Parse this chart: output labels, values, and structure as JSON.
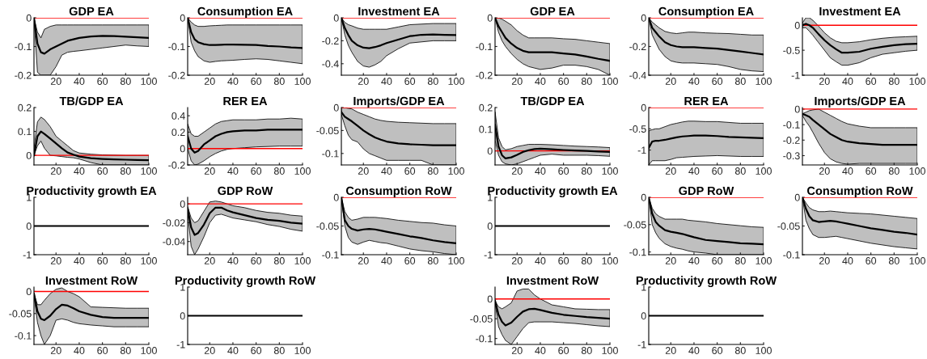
{
  "chart_data": [
    {
      "type": "line",
      "title": "GDP EA",
      "x": [
        1,
        4,
        7,
        10,
        15,
        20,
        25,
        30,
        35,
        40,
        50,
        60,
        70,
        80,
        90,
        100
      ],
      "xlim": [
        1,
        100
      ],
      "xticks": [
        20,
        40,
        60,
        80,
        100
      ],
      "ylim": [
        -0.2,
        0
      ],
      "yticks": [
        -0.2,
        -0.1,
        0
      ],
      "ref_lines": [
        {
          "axis": "y",
          "value": 0,
          "color": "#ff0000"
        }
      ],
      "series": [
        {
          "color": "#000000",
          "values": [
            0,
            -0.09,
            -0.12,
            -0.125,
            -0.11,
            -0.1,
            -0.09,
            -0.08,
            -0.075,
            -0.07,
            -0.065,
            -0.063,
            -0.064,
            -0.066,
            -0.068,
            -0.07
          ],
          "lower": [
            0,
            -0.19,
            -0.2,
            -0.2,
            -0.2,
            -0.17,
            -0.13,
            -0.12,
            -0.117,
            -0.115,
            -0.11,
            -0.105,
            -0.1,
            -0.095,
            -0.098,
            -0.1
          ],
          "upper": [
            0,
            -0.05,
            -0.07,
            -0.04,
            -0.03,
            -0.025,
            -0.025,
            -0.025,
            -0.025,
            -0.025,
            -0.025,
            -0.025,
            -0.025,
            -0.025,
            -0.025,
            -0.025
          ]
        }
      ]
    },
    {
      "type": "line",
      "title": "Consumption EA",
      "x": [
        1,
        4,
        7,
        10,
        15,
        20,
        25,
        30,
        35,
        40,
        50,
        60,
        70,
        80,
        90,
        100
      ],
      "xlim": [
        1,
        100
      ],
      "xticks": [
        20,
        40,
        60,
        80,
        100
      ],
      "ylim": [
        -0.2,
        0
      ],
      "yticks": [
        -0.2,
        -0.1,
        0
      ],
      "ref_lines": [
        {
          "axis": "y",
          "value": 0,
          "color": "#ff0000"
        }
      ],
      "series": [
        {
          "color": "#000000",
          "values": [
            0,
            -0.05,
            -0.075,
            -0.085,
            -0.092,
            -0.095,
            -0.095,
            -0.094,
            -0.093,
            -0.093,
            -0.094,
            -0.095,
            -0.098,
            -0.1,
            -0.103,
            -0.105
          ],
          "lower": [
            0,
            -0.085,
            -0.115,
            -0.135,
            -0.15,
            -0.155,
            -0.152,
            -0.15,
            -0.149,
            -0.148,
            -0.145,
            -0.143,
            -0.145,
            -0.15,
            -0.155,
            -0.16
          ],
          "upper": [
            0,
            -0.015,
            -0.025,
            -0.03,
            -0.03,
            -0.028,
            -0.027,
            -0.026,
            -0.025,
            -0.025,
            -0.025,
            -0.025,
            -0.025,
            -0.025,
            -0.025,
            -0.025
          ]
        }
      ]
    },
    {
      "type": "line",
      "title": "Investment EA",
      "x": [
        1,
        4,
        7,
        10,
        15,
        20,
        25,
        30,
        35,
        40,
        50,
        60,
        70,
        80,
        90,
        100
      ],
      "xlim": [
        1,
        100
      ],
      "xticks": [
        20,
        40,
        60,
        80,
        100
      ],
      "ylim": [
        -0.5,
        0
      ],
      "yticks": [
        -0.4,
        -0.2,
        0
      ],
      "ref_lines": [
        {
          "axis": "y",
          "value": 0,
          "color": "#ff0000"
        }
      ],
      "series": [
        {
          "color": "#000000",
          "values": [
            0,
            -0.09,
            -0.15,
            -0.2,
            -0.24,
            -0.26,
            -0.265,
            -0.255,
            -0.24,
            -0.22,
            -0.19,
            -0.16,
            -0.148,
            -0.145,
            -0.148,
            -0.15
          ],
          "lower": [
            0,
            -0.15,
            -0.24,
            -0.3,
            -0.38,
            -0.42,
            -0.43,
            -0.41,
            -0.38,
            -0.33,
            -0.27,
            -0.22,
            -0.21,
            -0.2,
            -0.2,
            -0.2
          ],
          "upper": [
            0,
            -0.04,
            -0.06,
            -0.07,
            -0.09,
            -0.1,
            -0.1,
            -0.1,
            -0.1,
            -0.1,
            -0.08,
            -0.06,
            -0.055,
            -0.05,
            -0.05,
            -0.05
          ]
        }
      ]
    },
    {
      "type": "line",
      "title": "TB/GDP EA",
      "x": [
        1,
        4,
        7,
        10,
        15,
        20,
        25,
        30,
        35,
        40,
        50,
        60,
        70,
        80,
        90,
        100
      ],
      "xlim": [
        1,
        100
      ],
      "xticks": [
        20,
        40,
        60,
        80,
        100
      ],
      "ylim": [
        -0.04,
        0.2
      ],
      "yticks": [
        0,
        0.1,
        0.2
      ],
      "ref_lines": [
        {
          "axis": "y",
          "value": 0,
          "color": "#ff0000"
        }
      ],
      "series": [
        {
          "color": "#000000",
          "values": [
            0,
            0.08,
            0.1,
            0.09,
            0.07,
            0.05,
            0.03,
            0.012,
            0.003,
            -0.005,
            -0.012,
            -0.015,
            -0.017,
            -0.018,
            -0.019,
            -0.02
          ],
          "lower": [
            0,
            0.04,
            0.06,
            0.03,
            0.0,
            -0.002,
            -0.005,
            -0.008,
            -0.01,
            -0.015,
            -0.03,
            -0.04,
            -0.04,
            -0.04,
            -0.04,
            -0.04
          ],
          "upper": [
            0.03,
            0.14,
            0.16,
            0.15,
            0.12,
            0.08,
            0.06,
            0.04,
            0.02,
            0.01,
            0.005,
            0.002,
            0.001,
            0,
            0,
            0
          ]
        }
      ]
    },
    {
      "type": "line",
      "title": "RER EA",
      "x": [
        1,
        4,
        7,
        10,
        15,
        20,
        25,
        30,
        35,
        40,
        50,
        60,
        70,
        80,
        90,
        100
      ],
      "xlim": [
        1,
        100
      ],
      "xticks": [
        20,
        40,
        60,
        80,
        100
      ],
      "ylim": [
        -0.2,
        0.5
      ],
      "yticks": [
        -0.2,
        0,
        0.2,
        0.4
      ],
      "ref_lines": [
        {
          "axis": "y",
          "value": 0,
          "color": "#ff0000"
        }
      ],
      "series": [
        {
          "color": "#000000",
          "values": [
            0.15,
            0.0,
            -0.05,
            -0.03,
            0.05,
            0.1,
            0.15,
            0.18,
            0.2,
            0.21,
            0.22,
            0.22,
            0.23,
            0.23,
            0.23,
            0.23
          ],
          "lower": [
            0.0,
            -0.15,
            -0.2,
            -0.19,
            -0.15,
            -0.1,
            -0.06,
            -0.03,
            -0.01,
            0.0,
            0.01,
            0.02,
            0.025,
            0.03,
            0.03,
            0.03
          ],
          "upper": [
            0.3,
            0.18,
            0.15,
            0.15,
            0.2,
            0.25,
            0.3,
            0.33,
            0.34,
            0.35,
            0.35,
            0.35,
            0.36,
            0.36,
            0.37,
            0.36
          ]
        }
      ]
    },
    {
      "type": "line",
      "title": "Imports/GDP EA",
      "x": [
        1,
        4,
        7,
        10,
        15,
        20,
        25,
        30,
        35,
        40,
        50,
        60,
        70,
        80,
        90,
        100
      ],
      "xlim": [
        1,
        100
      ],
      "xticks": [
        20,
        40,
        60,
        80,
        100
      ],
      "ylim": [
        -0.125,
        0
      ],
      "yticks": [
        -0.1,
        -0.05,
        0
      ],
      "ref_lines": [
        {
          "axis": "y",
          "value": 0,
          "color": "#ff0000"
        }
      ],
      "series": [
        {
          "color": "#000000",
          "values": [
            -0.01,
            -0.02,
            -0.025,
            -0.03,
            -0.04,
            -0.05,
            -0.058,
            -0.065,
            -0.07,
            -0.074,
            -0.078,
            -0.08,
            -0.081,
            -0.082,
            -0.082,
            -0.082
          ],
          "lower": [
            -0.015,
            -0.04,
            -0.06,
            -0.07,
            -0.075,
            -0.09,
            -0.1,
            -0.105,
            -0.11,
            -0.115,
            -0.115,
            -0.115,
            -0.115,
            -0.125,
            -0.125,
            -0.125
          ],
          "upper": [
            0,
            0,
            -0.002,
            -0.003,
            -0.01,
            -0.015,
            -0.02,
            -0.025,
            -0.028,
            -0.03,
            -0.032,
            -0.033,
            -0.034,
            -0.035,
            -0.035,
            -0.035
          ]
        }
      ]
    },
    {
      "type": "line",
      "title": "Productivity growth EA",
      "x": [
        1,
        4,
        7,
        10,
        15,
        20,
        25,
        30,
        35,
        40,
        50,
        60,
        70,
        80,
        90,
        100
      ],
      "xlim": [
        1,
        100
      ],
      "xticks": [
        20,
        40,
        60,
        80,
        100
      ],
      "ylim": [
        -1,
        1
      ],
      "yticks": [
        -1,
        0,
        1
      ],
      "series": [
        {
          "color": "#000000",
          "values": [
            0,
            0,
            0,
            0,
            0,
            0,
            0,
            0,
            0,
            0,
            0,
            0,
            0,
            0,
            0,
            0
          ]
        }
      ]
    },
    {
      "type": "line",
      "title": "GDP RoW",
      "x": [
        1,
        4,
        7,
        10,
        15,
        20,
        25,
        30,
        35,
        40,
        50,
        60,
        70,
        80,
        90,
        100
      ],
      "xlim": [
        1,
        100
      ],
      "xticks": [
        20,
        40,
        60,
        80,
        100
      ],
      "ylim": [
        -0.054,
        0.007
      ],
      "yticks": [
        -0.04,
        -0.02,
        0
      ],
      "ref_lines": [
        {
          "axis": "y",
          "value": 0,
          "color": "#ff0000"
        }
      ],
      "series": [
        {
          "color": "#000000",
          "values": [
            -0.005,
            -0.025,
            -0.033,
            -0.031,
            -0.022,
            -0.01,
            -0.004,
            -0.004,
            -0.007,
            -0.009,
            -0.012,
            -0.015,
            -0.017,
            -0.018,
            -0.02,
            -0.021
          ],
          "lower": [
            -0.01,
            -0.045,
            -0.054,
            -0.048,
            -0.035,
            -0.02,
            -0.012,
            -0.011,
            -0.013,
            -0.015,
            -0.017,
            -0.019,
            -0.022,
            -0.024,
            -0.027,
            -0.029
          ],
          "upper": [
            -0.003,
            -0.015,
            -0.02,
            -0.018,
            -0.008,
            0.002,
            0.003,
            0.002,
            0,
            -0.002,
            -0.004,
            -0.007,
            -0.009,
            -0.01,
            -0.012,
            -0.013
          ]
        }
      ]
    },
    {
      "type": "line",
      "title": "Consumption RoW",
      "x": [
        1,
        4,
        7,
        10,
        15,
        20,
        25,
        30,
        35,
        40,
        50,
        60,
        70,
        80,
        90,
        100
      ],
      "xlim": [
        1,
        100
      ],
      "xticks": [
        20,
        40,
        60,
        80,
        100
      ],
      "ylim": [
        -0.1,
        0
      ],
      "yticks": [
        -0.1,
        -0.05,
        0
      ],
      "ref_lines": [
        {
          "axis": "y",
          "value": 0,
          "color": "#ff0000"
        }
      ],
      "series": [
        {
          "color": "#000000",
          "values": [
            0,
            -0.04,
            -0.05,
            -0.055,
            -0.058,
            -0.056,
            -0.055,
            -0.056,
            -0.058,
            -0.06,
            -0.064,
            -0.068,
            -0.071,
            -0.075,
            -0.078,
            -0.08
          ],
          "lower": [
            0,
            -0.05,
            -0.07,
            -0.078,
            -0.082,
            -0.078,
            -0.075,
            -0.077,
            -0.079,
            -0.08,
            -0.085,
            -0.09,
            -0.093,
            -0.095,
            -0.098,
            -0.1
          ],
          "upper": [
            0,
            -0.025,
            -0.035,
            -0.04,
            -0.038,
            -0.035,
            -0.035,
            -0.035,
            -0.036,
            -0.037,
            -0.04,
            -0.042,
            -0.044,
            -0.045,
            -0.048,
            -0.05
          ]
        }
      ]
    },
    {
      "type": "line",
      "title": "Investment RoW",
      "x": [
        1,
        4,
        7,
        10,
        15,
        20,
        25,
        30,
        35,
        40,
        50,
        60,
        70,
        80,
        90,
        100
      ],
      "xlim": [
        1,
        100
      ],
      "xticks": [
        20,
        40,
        60,
        80,
        100
      ],
      "ylim": [
        -0.12,
        0.01
      ],
      "yticks": [
        -0.1,
        -0.05,
        0
      ],
      "ref_lines": [
        {
          "axis": "y",
          "value": 0,
          "color": "#ff0000"
        }
      ],
      "series": [
        {
          "color": "#000000",
          "values": [
            -0.005,
            -0.045,
            -0.062,
            -0.065,
            -0.055,
            -0.04,
            -0.03,
            -0.032,
            -0.038,
            -0.045,
            -0.053,
            -0.058,
            -0.06,
            -0.06,
            -0.06,
            -0.06
          ],
          "lower": [
            -0.01,
            -0.07,
            -0.1,
            -0.12,
            -0.1,
            -0.065,
            -0.062,
            -0.065,
            -0.07,
            -0.073,
            -0.076,
            -0.078,
            -0.08,
            -0.08,
            -0.08,
            -0.08
          ],
          "upper": [
            -0.005,
            -0.03,
            -0.03,
            -0.02,
            -0.005,
            0.005,
            0.008,
            0.0,
            -0.005,
            -0.012,
            -0.035,
            -0.036,
            -0.037,
            -0.038,
            -0.038,
            -0.038
          ]
        }
      ]
    },
    {
      "type": "line",
      "title": "Productivity growth RoW",
      "x": [
        1,
        4,
        7,
        10,
        15,
        20,
        25,
        30,
        35,
        40,
        50,
        60,
        70,
        80,
        90,
        100
      ],
      "xlim": [
        1,
        100
      ],
      "xticks": [
        20,
        40,
        60,
        80,
        100
      ],
      "ylim": [
        -1,
        1
      ],
      "yticks": [
        -1,
        0,
        1
      ],
      "series": [
        {
          "color": "#000000",
          "values": [
            0,
            0,
            0,
            0,
            0,
            0,
            0,
            0,
            0,
            0,
            0,
            0,
            0,
            0,
            0,
            0
          ]
        }
      ]
    },
    {
      "type": "line",
      "title": "GDP EA",
      "x": [
        1,
        4,
        7,
        10,
        15,
        20,
        25,
        30,
        35,
        40,
        50,
        60,
        70,
        80,
        90,
        100
      ],
      "xlim": [
        1,
        100
      ],
      "xticks": [
        20,
        40,
        60,
        80,
        100
      ],
      "ylim": [
        -0.2,
        0
      ],
      "yticks": [
        -0.2,
        -0.1,
        0
      ],
      "ref_lines": [
        {
          "axis": "y",
          "value": 0,
          "color": "#ff0000"
        }
      ],
      "series": [
        {
          "color": "#000000",
          "values": [
            0,
            -0.03,
            -0.05,
            -0.07,
            -0.09,
            -0.105,
            -0.115,
            -0.12,
            -0.12,
            -0.12,
            -0.12,
            -0.124,
            -0.128,
            -0.135,
            -0.143,
            -0.15
          ],
          "lower": [
            0,
            -0.05,
            -0.08,
            -0.1,
            -0.125,
            -0.145,
            -0.16,
            -0.17,
            -0.175,
            -0.18,
            -0.175,
            -0.165,
            -0.165,
            -0.17,
            -0.18,
            -0.2
          ],
          "upper": [
            0,
            0,
            -0.005,
            -0.012,
            -0.025,
            -0.045,
            -0.06,
            -0.07,
            -0.07,
            -0.07,
            -0.07,
            -0.073,
            -0.075,
            -0.08,
            -0.085,
            -0.09
          ]
        }
      ]
    },
    {
      "type": "line",
      "title": "Consumption EA",
      "x": [
        1,
        4,
        7,
        10,
        15,
        20,
        25,
        30,
        35,
        40,
        50,
        60,
        70,
        80,
        90,
        100
      ],
      "xlim": [
        1,
        100
      ],
      "xticks": [
        20,
        40,
        60,
        80,
        100
      ],
      "ylim": [
        -0.4,
        0
      ],
      "yticks": [
        -0.4,
        -0.2,
        0
      ],
      "ref_lines": [
        {
          "axis": "y",
          "value": 0,
          "color": "#ff0000"
        }
      ],
      "series": [
        {
          "color": "#000000",
          "values": [
            0,
            -0.07,
            -0.1,
            -0.13,
            -0.17,
            -0.19,
            -0.2,
            -0.205,
            -0.205,
            -0.205,
            -0.21,
            -0.215,
            -0.225,
            -0.235,
            -0.245,
            -0.255
          ],
          "lower": [
            0,
            -0.12,
            -0.17,
            -0.22,
            -0.27,
            -0.3,
            -0.31,
            -0.315,
            -0.315,
            -0.315,
            -0.32,
            -0.325,
            -0.34,
            -0.36,
            -0.37,
            -0.375
          ],
          "upper": [
            0,
            -0.03,
            -0.05,
            -0.07,
            -0.095,
            -0.105,
            -0.11,
            -0.105,
            -0.1,
            -0.1,
            -0.105,
            -0.108,
            -0.11,
            -0.115,
            -0.12,
            -0.12
          ]
        }
      ]
    },
    {
      "type": "line",
      "title": "Investment EA",
      "x": [
        1,
        4,
        7,
        10,
        15,
        20,
        25,
        30,
        35,
        40,
        50,
        60,
        70,
        80,
        90,
        100
      ],
      "xlim": [
        1,
        100
      ],
      "xticks": [
        20,
        40,
        60,
        80,
        100
      ],
      "ylim": [
        -1,
        0.15
      ],
      "yticks": [
        -1,
        -0.5,
        0
      ],
      "ref_lines": [
        {
          "axis": "y",
          "value": 0,
          "color": "#ff0000"
        }
      ],
      "series": [
        {
          "color": "#000000",
          "values": [
            0,
            0.03,
            0.0,
            -0.05,
            -0.18,
            -0.3,
            -0.4,
            -0.48,
            -0.55,
            -0.55,
            -0.53,
            -0.47,
            -0.43,
            -0.4,
            -0.38,
            -0.37
          ],
          "lower": [
            -0.05,
            -0.05,
            -0.12,
            -0.2,
            -0.35,
            -0.5,
            -0.65,
            -0.73,
            -0.8,
            -0.8,
            -0.75,
            -0.65,
            -0.58,
            -0.55,
            -0.52,
            -0.5
          ],
          "upper": [
            0.05,
            0.15,
            0.15,
            0.1,
            -0.02,
            -0.15,
            -0.25,
            -0.32,
            -0.35,
            -0.35,
            -0.33,
            -0.29,
            -0.26,
            -0.24,
            -0.23,
            -0.22
          ]
        }
      ]
    },
    {
      "type": "line",
      "title": "TB/GDP EA",
      "x": [
        1,
        4,
        7,
        10,
        15,
        20,
        25,
        30,
        35,
        40,
        50,
        60,
        70,
        80,
        90,
        100
      ],
      "xlim": [
        1,
        100
      ],
      "xticks": [
        20,
        40,
        60,
        80,
        100
      ],
      "ylim": [
        -0.065,
        0.2
      ],
      "yticks": [
        0,
        0.1,
        0.2
      ],
      "ref_lines": [
        {
          "axis": "y",
          "value": 0,
          "color": "#ff0000"
        }
      ],
      "series": [
        {
          "color": "#000000",
          "values": [
            0.12,
            0.02,
            -0.02,
            -0.035,
            -0.03,
            -0.018,
            -0.005,
            0.003,
            0.008,
            0.01,
            0.007,
            0.004,
            0.002,
            0,
            -0.003,
            -0.005
          ],
          "lower": [
            0.05,
            -0.02,
            -0.05,
            -0.06,
            -0.065,
            -0.06,
            -0.05,
            -0.04,
            -0.03,
            -0.02,
            -0.015,
            -0.02,
            -0.02,
            -0.02,
            -0.022,
            -0.025
          ],
          "upper": [
            0.18,
            0.06,
            0.02,
            0.005,
            0.01,
            0.02,
            0.025,
            0.03,
            0.03,
            0.03,
            0.028,
            0.025,
            0.022,
            0.02,
            0.018,
            0.015
          ]
        }
      ]
    },
    {
      "type": "line",
      "title": "RER EA",
      "x": [
        1,
        4,
        7,
        10,
        15,
        20,
        25,
        30,
        35,
        40,
        50,
        60,
        70,
        80,
        90,
        100
      ],
      "xlim": [
        1,
        100
      ],
      "xticks": [
        20,
        40,
        60,
        80,
        100
      ],
      "ylim": [
        -1.35,
        0
      ],
      "yticks": [
        -1,
        -0.5,
        0
      ],
      "ref_lines": [
        {
          "axis": "y",
          "value": 0,
          "color": "#ff0000"
        }
      ],
      "series": [
        {
          "color": "#000000",
          "values": [
            -0.95,
            -0.8,
            -0.78,
            -0.78,
            -0.76,
            -0.73,
            -0.7,
            -0.68,
            -0.67,
            -0.66,
            -0.66,
            -0.67,
            -0.69,
            -0.7,
            -0.71,
            -0.72
          ],
          "lower": [
            -1.35,
            -1.25,
            -1.25,
            -1.25,
            -1.25,
            -1.22,
            -1.18,
            -1.17,
            -1.16,
            -1.15,
            -1.14,
            -1.13,
            -1.14,
            -1.15,
            -1.15,
            -1.15
          ],
          "upper": [
            -0.55,
            -0.52,
            -0.5,
            -0.5,
            -0.45,
            -0.4,
            -0.37,
            -0.34,
            -0.32,
            -0.32,
            -0.33,
            -0.33,
            -0.35,
            -0.37,
            -0.37,
            -0.37
          ]
        }
      ]
    },
    {
      "type": "line",
      "title": "Imports/GDP EA",
      "x": [
        1,
        4,
        7,
        10,
        15,
        20,
        25,
        30,
        35,
        40,
        50,
        60,
        70,
        80,
        90,
        100
      ],
      "xlim": [
        1,
        100
      ],
      "xticks": [
        20,
        40,
        60,
        80,
        100
      ],
      "ylim": [
        -0.36,
        0.01
      ],
      "yticks": [
        -0.3,
        -0.2,
        -0.1,
        0
      ],
      "ref_lines": [
        {
          "axis": "y",
          "value": 0,
          "color": "#ff0000"
        }
      ],
      "series": [
        {
          "color": "#000000",
          "values": [
            -0.03,
            -0.04,
            -0.05,
            -0.07,
            -0.1,
            -0.13,
            -0.16,
            -0.18,
            -0.2,
            -0.21,
            -0.22,
            -0.225,
            -0.23,
            -0.23,
            -0.23,
            -0.23
          ],
          "lower": [
            -0.04,
            -0.08,
            -0.11,
            -0.15,
            -0.22,
            -0.28,
            -0.32,
            -0.34,
            -0.35,
            -0.355,
            -0.35,
            -0.35,
            -0.35,
            -0.35,
            -0.35,
            -0.35
          ],
          "upper": [
            -0.03,
            -0.02,
            -0.01,
            -0.005,
            0,
            -0.02,
            -0.04,
            -0.06,
            -0.08,
            -0.095,
            -0.11,
            -0.12,
            -0.12,
            -0.12,
            -0.12,
            -0.12
          ]
        }
      ]
    },
    {
      "type": "line",
      "title": "Productivity growth EA",
      "x": [
        1,
        4,
        7,
        10,
        15,
        20,
        25,
        30,
        35,
        40,
        50,
        60,
        70,
        80,
        90,
        100
      ],
      "xlim": [
        1,
        100
      ],
      "xticks": [
        20,
        40,
        60,
        80,
        100
      ],
      "ylim": [
        -1,
        1
      ],
      "yticks": [
        -1,
        0,
        1
      ],
      "series": [
        {
          "color": "#000000",
          "values": [
            0,
            0,
            0,
            0,
            0,
            0,
            0,
            0,
            0,
            0,
            0,
            0,
            0,
            0,
            0,
            0
          ]
        }
      ]
    },
    {
      "type": "line",
      "title": "GDP RoW",
      "x": [
        1,
        4,
        7,
        10,
        15,
        20,
        25,
        30,
        35,
        40,
        50,
        60,
        70,
        80,
        90,
        100
      ],
      "xlim": [
        1,
        100
      ],
      "xticks": [
        20,
        40,
        60,
        80,
        100
      ],
      "ylim": [
        -0.105,
        0
      ],
      "yticks": [
        -0.1,
        -0.05,
        0
      ],
      "ref_lines": [
        {
          "axis": "y",
          "value": 0,
          "color": "#ff0000"
        }
      ],
      "series": [
        {
          "color": "#000000",
          "values": [
            0,
            -0.03,
            -0.045,
            -0.052,
            -0.06,
            -0.063,
            -0.065,
            -0.067,
            -0.07,
            -0.073,
            -0.078,
            -0.08,
            -0.082,
            -0.084,
            -0.085,
            -0.086
          ],
          "lower": [
            0,
            -0.05,
            -0.065,
            -0.075,
            -0.085,
            -0.09,
            -0.093,
            -0.095,
            -0.098,
            -0.1,
            -0.102,
            -0.105,
            -0.105,
            -0.105,
            -0.105,
            -0.105
          ],
          "upper": [
            0,
            -0.02,
            -0.03,
            -0.035,
            -0.04,
            -0.04,
            -0.04,
            -0.04,
            -0.042,
            -0.043,
            -0.045,
            -0.048,
            -0.05,
            -0.052,
            -0.054,
            -0.055
          ]
        }
      ]
    },
    {
      "type": "line",
      "title": "Consumption RoW",
      "x": [
        1,
        4,
        7,
        10,
        15,
        20,
        25,
        30,
        35,
        40,
        50,
        60,
        70,
        80,
        90,
        100
      ],
      "xlim": [
        1,
        100
      ],
      "xticks": [
        20,
        40,
        60,
        80,
        100
      ],
      "ylim": [
        -0.1,
        0
      ],
      "yticks": [
        -0.1,
        -0.05,
        0
      ],
      "ref_lines": [
        {
          "axis": "y",
          "value": 0,
          "color": "#ff0000"
        }
      ],
      "series": [
        {
          "color": "#000000",
          "values": [
            0,
            -0.02,
            -0.033,
            -0.04,
            -0.043,
            -0.042,
            -0.041,
            -0.042,
            -0.044,
            -0.046,
            -0.05,
            -0.054,
            -0.057,
            -0.06,
            -0.062,
            -0.065
          ],
          "lower": [
            0,
            -0.04,
            -0.055,
            -0.065,
            -0.07,
            -0.07,
            -0.069,
            -0.068,
            -0.07,
            -0.072,
            -0.076,
            -0.08,
            -0.083,
            -0.086,
            -0.088,
            -0.09
          ],
          "upper": [
            0,
            -0.01,
            -0.018,
            -0.022,
            -0.025,
            -0.025,
            -0.024,
            -0.025,
            -0.026,
            -0.027,
            -0.028,
            -0.029,
            -0.031,
            -0.033,
            -0.035,
            -0.037
          ]
        }
      ]
    },
    {
      "type": "line",
      "title": "Investment RoW",
      "x": [
        1,
        4,
        7,
        10,
        15,
        20,
        25,
        30,
        35,
        40,
        50,
        60,
        70,
        80,
        90,
        100
      ],
      "xlim": [
        1,
        100
      ],
      "xticks": [
        20,
        40,
        60,
        80,
        100
      ],
      "ylim": [
        -0.115,
        0.03
      ],
      "yticks": [
        -0.1,
        -0.05,
        0
      ],
      "ref_lines": [
        {
          "axis": "y",
          "value": 0,
          "color": "#ff0000"
        }
      ],
      "series": [
        {
          "color": "#000000",
          "values": [
            -0.005,
            -0.04,
            -0.058,
            -0.067,
            -0.06,
            -0.045,
            -0.032,
            -0.026,
            -0.025,
            -0.028,
            -0.035,
            -0.04,
            -0.043,
            -0.046,
            -0.048,
            -0.05
          ],
          "lower": [
            -0.01,
            -0.07,
            -0.09,
            -0.105,
            -0.115,
            -0.095,
            -0.075,
            -0.06,
            -0.058,
            -0.058,
            -0.058,
            -0.06,
            -0.062,
            -0.065,
            -0.068,
            -0.07
          ],
          "upper": [
            -0.005,
            -0.02,
            -0.025,
            -0.02,
            -0.01,
            0.02,
            0.025,
            0.025,
            0.01,
            0.0,
            -0.015,
            -0.02,
            -0.025,
            -0.026,
            -0.027,
            -0.027
          ]
        }
      ]
    },
    {
      "type": "line",
      "title": "Productivity growth RoW",
      "x": [
        1,
        4,
        7,
        10,
        15,
        20,
        25,
        30,
        35,
        40,
        50,
        60,
        70,
        80,
        90,
        100
      ],
      "xlim": [
        1,
        100
      ],
      "xticks": [
        20,
        40,
        60,
        80,
        100
      ],
      "ylim": [
        -1,
        1
      ],
      "yticks": [
        -1,
        0,
        1
      ],
      "series": [
        {
          "color": "#000000",
          "values": [
            0,
            0,
            0,
            0,
            0,
            0,
            0,
            0,
            0,
            0,
            0,
            0,
            0,
            0,
            0,
            0
          ]
        }
      ]
    }
  ]
}
